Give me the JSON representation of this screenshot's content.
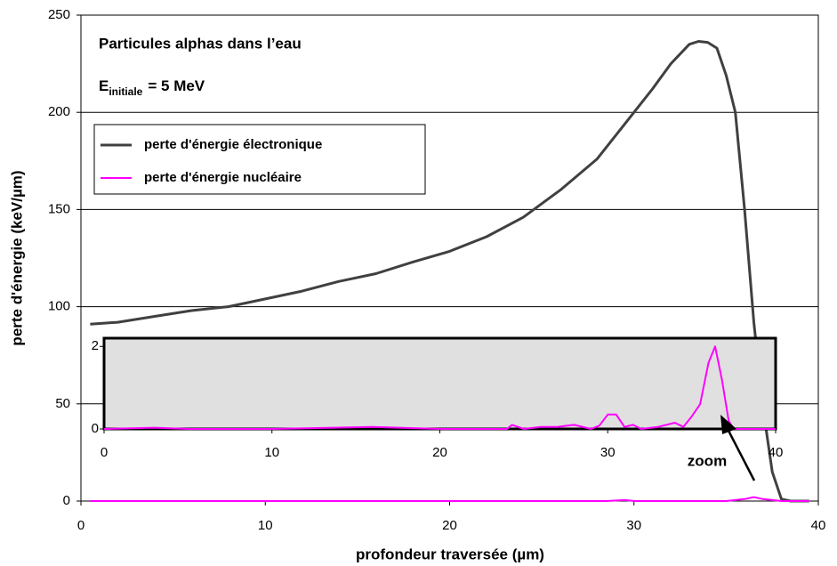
{
  "chart_data": [
    {
      "type": "line",
      "title": "Particules alphas dans l’eau",
      "annotation": {
        "symbol": "E",
        "subscript": "initiale",
        "rest": "=  5 MeV"
      },
      "xlabel": "profondeur traversée (µm)",
      "ylabel": "perte d'énergie (keV/µm)",
      "xlim": [
        0,
        40
      ],
      "xticks": [
        0,
        10,
        20,
        30,
        40
      ],
      "ylim": [
        0,
        250
      ],
      "yticks": [
        0,
        50,
        100,
        150,
        200,
        250
      ],
      "grid": true,
      "legend": "upper left",
      "series": [
        {
          "name": "perte d'énergie électronique",
          "color": "#404040",
          "x": [
            0.5,
            2,
            4,
            6,
            8,
            10,
            12,
            14,
            16,
            18,
            20,
            22,
            24,
            25,
            26,
            28,
            30,
            31,
            32,
            33,
            33.5,
            34,
            34.5,
            35,
            35.5,
            36,
            36.5,
            37,
            37.5,
            38,
            38.5,
            39.5
          ],
          "values": [
            91,
            92,
            95,
            98,
            100,
            104,
            108,
            113,
            117,
            123,
            128.5,
            136,
            146,
            153,
            160,
            176,
            200,
            212,
            225,
            235,
            236.5,
            236,
            233,
            219,
            200,
            150,
            92,
            48,
            15,
            1,
            0,
            0
          ]
        },
        {
          "name": "perte d'énergie nucléaire",
          "color": "#ff00ff",
          "x": [
            0.5,
            28.5,
            29.5,
            30,
            35,
            36,
            36.5,
            37,
            38,
            39.5
          ],
          "values": [
            0,
            0,
            0.5,
            0,
            0,
            1,
            2,
            1,
            0,
            0
          ]
        }
      ]
    },
    {
      "type": "line",
      "annotation": "zoom",
      "xlim": [
        0,
        40
      ],
      "xticks": [
        0,
        10,
        20,
        30,
        40
      ],
      "ylim": [
        0,
        2.2
      ],
      "yticks": [
        0,
        2
      ],
      "background": "#e0e0e0",
      "series": [
        {
          "color": "#ff00ff",
          "x": [
            0,
            3,
            5,
            10,
            16,
            20,
            24,
            24.3,
            25,
            26,
            27,
            28,
            29,
            29.5,
            30,
            30.5,
            31,
            31.5,
            32,
            33,
            34,
            34.5,
            35,
            35.5,
            36,
            36.4,
            36.8,
            37.2,
            37.5,
            38,
            40
          ],
          "values": [
            0,
            0.03,
            0,
            0,
            0.05,
            0,
            0,
            0.1,
            0,
            0.05,
            0.05,
            0.1,
            0,
            0.08,
            0.35,
            0.35,
            0.05,
            0.1,
            0,
            0.05,
            0.15,
            0.05,
            0.3,
            0.6,
            1.6,
            2.0,
            1.2,
            0.2,
            0,
            0,
            0
          ]
        }
      ]
    }
  ]
}
